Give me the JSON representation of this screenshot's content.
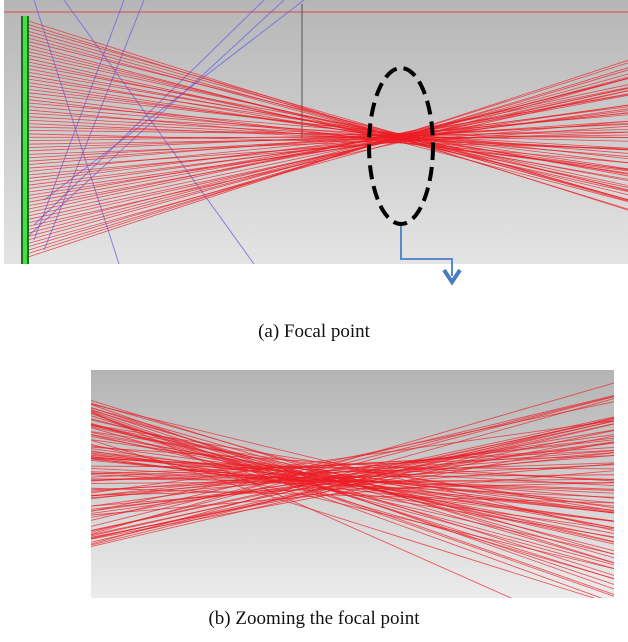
{
  "figure": {
    "subfigures": [
      {
        "caption": "(a) Focal point"
      },
      {
        "caption": "(b) Zooming the focal point"
      }
    ]
  },
  "colors": {
    "ray": "#ee1c24",
    "blue_ray": "#6a6ae6",
    "lens_bright": "#3fdc3f",
    "lens_dark": "#1f6b1f",
    "background_top": "#b8b8b8",
    "background_bottom": "#e2e2e2",
    "ellipse": "#000000",
    "arrow": "#5a88c8"
  },
  "icons": {
    "pointer": "arrow-down-icon"
  }
}
